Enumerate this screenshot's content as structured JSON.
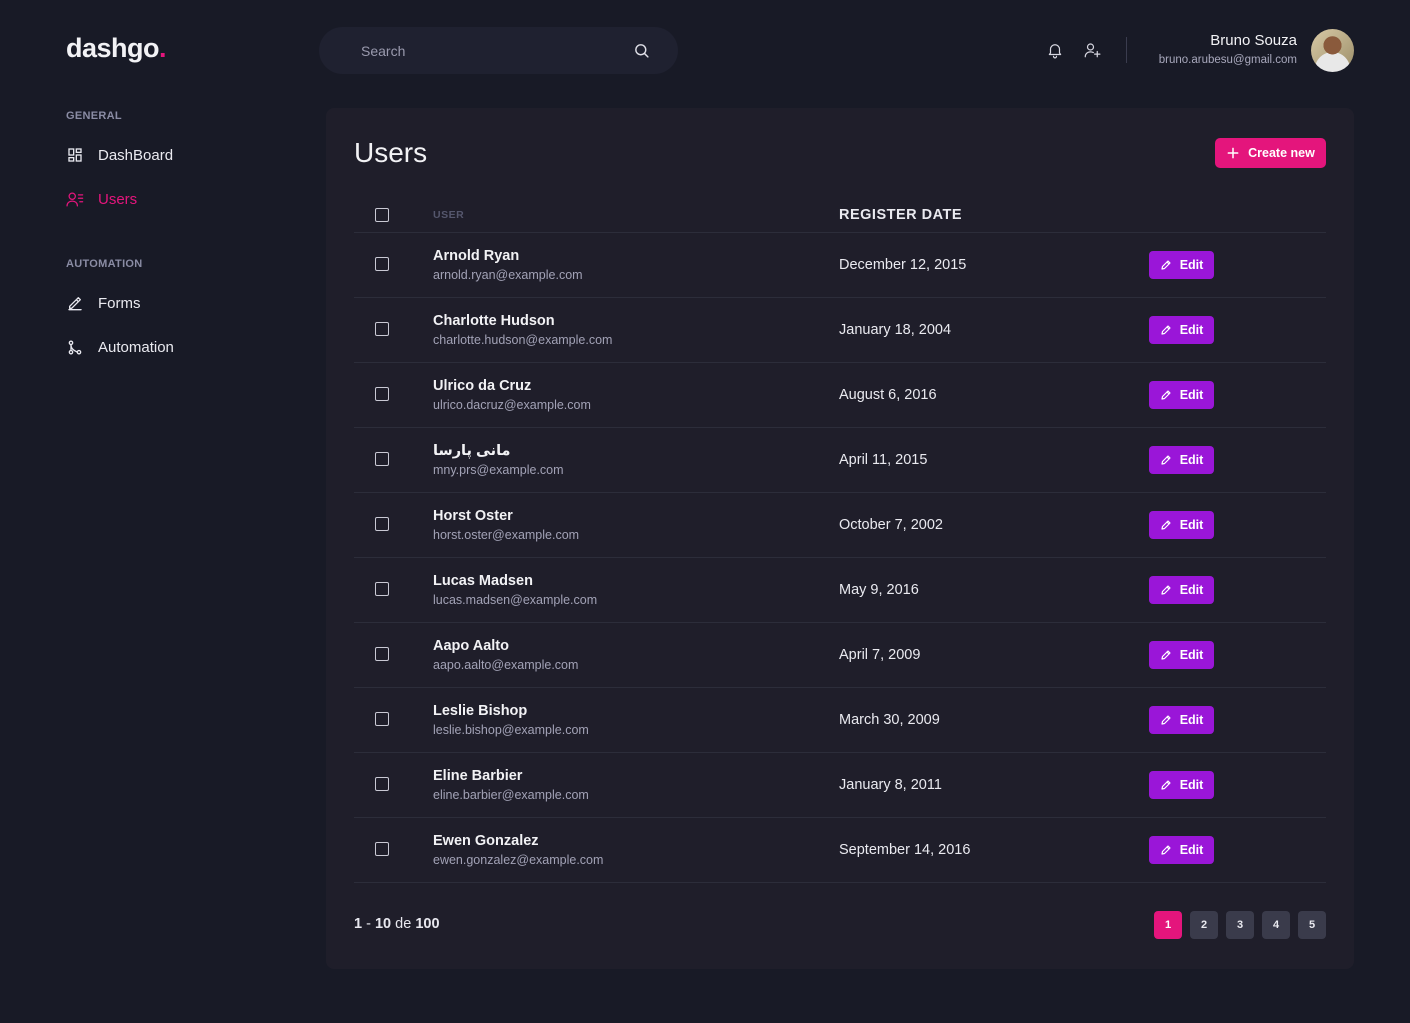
{
  "app": {
    "logo_text": "dashgo",
    "logo_dot": "."
  },
  "header": {
    "search_placeholder": "Search",
    "icons": [
      "bell-icon",
      "user-add-icon",
      "search-icon"
    ],
    "profile": {
      "name": "Bruno Souza",
      "email": "bruno.arubesu@gmail.com"
    }
  },
  "sidebar": {
    "sections": [
      {
        "title": "GENERAL",
        "items": [
          {
            "label": "DashBoard",
            "icon": "dashboard-icon",
            "active": false
          },
          {
            "label": "Users",
            "icon": "users-icon",
            "active": true
          }
        ]
      },
      {
        "title": "AUTOMATION",
        "items": [
          {
            "label": "Forms",
            "icon": "pencil-icon",
            "active": false
          },
          {
            "label": "Automation",
            "icon": "git-merge-icon",
            "active": false
          }
        ]
      }
    ]
  },
  "main": {
    "title": "Users",
    "create_label": "Create new",
    "columns": {
      "user": "USER",
      "register_date": "REGISTER DATE"
    },
    "edit_label": "Edit",
    "rows": [
      {
        "name": "Arnold Ryan",
        "email": "arnold.ryan@example.com",
        "date": "December 12, 2015"
      },
      {
        "name": "Charlotte Hudson",
        "email": "charlotte.hudson@example.com",
        "date": "January 18, 2004"
      },
      {
        "name": "Ulrico da Cruz",
        "email": "ulrico.dacruz@example.com",
        "date": "August 6, 2016"
      },
      {
        "name": "مانی پارسا",
        "email": "mny.prs@example.com",
        "date": "April 11, 2015"
      },
      {
        "name": "Horst Oster",
        "email": "horst.oster@example.com",
        "date": "October 7, 2002"
      },
      {
        "name": "Lucas Madsen",
        "email": "lucas.madsen@example.com",
        "date": "May 9, 2016"
      },
      {
        "name": "Aapo Aalto",
        "email": "aapo.aalto@example.com",
        "date": "April 7, 2009"
      },
      {
        "name": "Leslie Bishop",
        "email": "leslie.bishop@example.com",
        "date": "March 30, 2009"
      },
      {
        "name": "Eline Barbier",
        "email": "eline.barbier@example.com",
        "date": "January 8, 2011"
      },
      {
        "name": "Ewen Gonzalez",
        "email": "ewen.gonzalez@example.com",
        "date": "September 14, 2016"
      }
    ],
    "pagination": {
      "from": "1",
      "sep": "-",
      "to": "10",
      "of_label": "de",
      "total": "100",
      "pages": [
        "1",
        "2",
        "3",
        "4",
        "5"
      ],
      "current": "1"
    }
  },
  "colors": {
    "accent": "#e4157c",
    "edit": "#9a16d8",
    "background": "#181a26",
    "card": "#1f1e2a"
  }
}
